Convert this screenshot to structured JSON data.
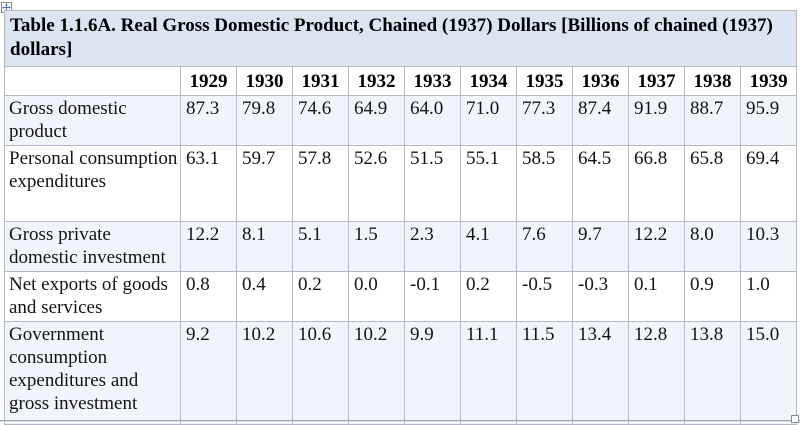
{
  "document": {
    "table_title": "Table 1.1.6A. Real Gross Domestic Product, Chained (1937) Dollars [Billions of chained (1937) dollars]",
    "corner_header": "",
    "columns": [
      "1929",
      "1930",
      "1931",
      "1932",
      "1933",
      "1934",
      "1935",
      "1936",
      "1937",
      "1938",
      "1939"
    ],
    "rows": [
      {
        "label": "Gross domestic product",
        "values": [
          "87.3",
          "79.8",
          "74.6",
          "64.9",
          "64.0",
          "71.0",
          "77.3",
          "87.4",
          "91.9",
          "88.7",
          "95.9"
        ]
      },
      {
        "label": "Personal consumption expenditures",
        "values": [
          "63.1",
          "59.7",
          "57.8",
          "52.6",
          "51.5",
          "55.1",
          "58.5",
          "64.5",
          "66.8",
          "65.8",
          "69.4"
        ]
      },
      {
        "label": "Gross private domestic investment",
        "values": [
          "12.2",
          "8.1",
          "5.1",
          "1.5",
          "2.3",
          "4.1",
          "7.6",
          "9.7",
          "12.2",
          "8.0",
          "10.3"
        ]
      },
      {
        "label": "Net exports of goods and services",
        "values": [
          "0.8",
          "0.4",
          "0.2",
          "0.0",
          "-0.1",
          "0.2",
          "-0.5",
          "-0.3",
          "0.1",
          "0.9",
          "1.0"
        ]
      },
      {
        "label": "Government consumption expenditures and gross investment",
        "values": [
          "9.2",
          "10.2",
          "10.6",
          "10.2",
          "9.9",
          "11.1",
          "11.5",
          "13.4",
          "12.8",
          "13.8",
          "15.0"
        ]
      }
    ]
  },
  "icons": {
    "move_handle": "table-move-handle",
    "resize_handle": "table-resize-handle"
  },
  "colors": {
    "title_background": "#dbe5f1",
    "banded_row_background": "#f1f4fa",
    "table_border": "#b3bac6",
    "move_handle_blue": "#4a6fb5",
    "text": "#141414"
  }
}
